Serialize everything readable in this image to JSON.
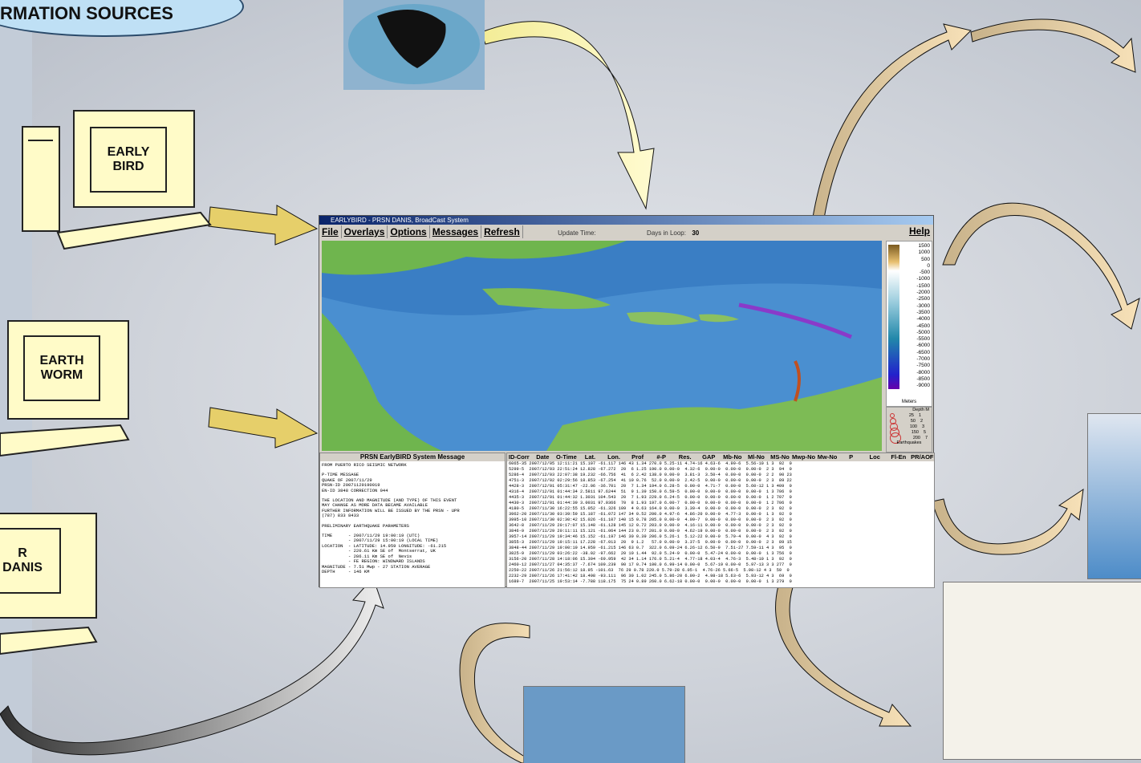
{
  "header": {
    "title": "RMATION SOURCES"
  },
  "sources": [
    {
      "lines": [
        "EARLY",
        "BIRD"
      ]
    },
    {
      "lines": [
        "EARTH",
        "WORM"
      ]
    },
    {
      "lines": [
        "R",
        "DANIS"
      ]
    }
  ],
  "window": {
    "title": "EARLYBIRD - PRSN DANIS, BroadCast System",
    "menu": [
      "File",
      "Overlays",
      "Options",
      "Messages",
      "Refresh"
    ],
    "update_label": "Update Time:",
    "days_label": "Days in Loop:",
    "days_value": "30",
    "help": "Help",
    "depth_scale": [
      "1500",
      "1000",
      "500",
      "0",
      "-500",
      "-1000",
      "-1500",
      "-2000",
      "-2500",
      "-3000",
      "-3500",
      "-4000",
      "-4500",
      "-5000",
      "-5500",
      "-6000",
      "-6500",
      "-7000",
      "-7500",
      "-8000",
      "-8500",
      "-9000"
    ],
    "units": "Meters",
    "depth_title": "Depth M",
    "depth_legend": [
      [
        "25",
        "1"
      ],
      [
        "50",
        "2"
      ],
      [
        "100",
        "3"
      ],
      [
        "150",
        "5"
      ],
      [
        "200",
        "7"
      ]
    ],
    "legend_caption": "Earthquakes",
    "message_title": "PRSN EarlyBIRD System Message",
    "message_paragraphs": [
      [
        "FROM PUERTO RICO SEISMIC NETWORK"
      ],
      [
        "P-TIME MESSAGE",
        "QUAKE OF 2007/11/29",
        "PRSN-ID 20071129190019",
        "EN-ID 3848 CORRECTION 044"
      ],
      [
        "THE LOCATION AND MAGNITUDE (AND TYPE) OF THIS EVENT",
        "MAY CHANGE AS MORE DATA BECAME AVAILABLE",
        "FURTHER INFORMATION WILL BE ISSUED BY THE PRSN - UPR",
        "(787) 833 8433"
      ],
      [
        "PRELIMINARY EARTHQUAKE PARAMETERS"
      ],
      [
        "TIME      - 2007/11/29 19:00:19 (UTC)",
        "          - 2007/11/29 15:00:19 (LOCAL TIME)",
        "LOCATION  - LATITUDE: 14.959 LONGITUDE: -61.215",
        "          - 220.61 Km SE of  Montserrat, UK",
        "          - 286.11 Km SE of  Nevis",
        "          - FE REGION: WINDWARD ISLANDS",
        "MAGNITUDE - 7.51 Mwp - 27 STATION AVERAGE",
        "DEPTH     - 146 KM"
      ]
    ],
    "table_header": [
      "ID-Corr",
      "Date",
      "O-Time",
      "Lat.",
      "Lon.",
      "Prof",
      "#-P",
      "Res.",
      "GAP",
      "Mb-No",
      "Ml-No",
      "MS-No",
      "Mwp-No",
      "Mw-No",
      "P",
      "Loc",
      "Fl-En",
      "PR/AOF"
    ],
    "table_rows": [
      "6065-35 2007/12/05 12:11:21 15.107 -61.117 146 43 1.34 270.0 5.25-11 4.74-16 4.63-6  4.99-6  5.56-10 1 3  92  0",
      "5299-5  2007/12/03 22:51:24 12.828 -67.272  20  6 1.25 190.0 0.00-0  4.32-6  0.00-0  0.00-0  0.00-0  2 3  94  0",
      "5286-4  2007/12/03 22:07:38 19.232 -66.756  41  6 2.42 138.0 0.00-0  3.81-3  3.50-4  0.00-0  0.00-0  2 2  90 23",
      "4751-3  2007/12/02 02:29:56 18.853 -67.254  41 10 0.76  52.0 0.00-0  2.42-5  0.00-0  0.00-0  0.00-0  2 3  89 22",
      "4428-3  2007/12/01 05:31:47 -22.06 -36.701  20  7 1.34 194.0 6.28-5  0.00-0  4.71-7  0.00-0  5.60-12 1 3 409  0",
      "4316-4  2007/12/01 01:44:34 2.5811 97.6244  51  9 1.39 150.0 6.59-5  0.00-0  0.00-0  0.00-0  0.00-0  1 3 706  0",
      "4435-3  2007/12/01 01:44:32 1.3031 104.543  20  7 1.93 229.0 6.24-5  0.00-0  0.00-0  0.00-0  0.00-0  1 2 707  0",
      "4430-3  2007/12/01 01:44:39 3.0031 97.0366  70  8 1.93 197.0 6.00-7  0.00-0  0.00-0  0.00-0  0.00-0  1 2 706  0",
      "4180-5  2007/11/30 16:22:55 15.052 -61.326 109  4 0.63 164.0 0.00-0  3.39-4  0.00-0  0.00-0  0.00-0  2 3  92  0",
      "3962-20 2007/11/30 03:39:59 15.187 -61.072 147 34 0.52 200.0 4.97-6  4.86-20 0.00-0  4.77-3  0.00-0  1 3  92  0",
      "3995-10 2007/11/30 02:30:42 15.026 -61.107 140 15 0.78 205.0 0.00-0  4.09-7  0.00-0  0.00-0  0.00-0  2 3  92  0",
      "3642-8  2007/11/29 20:17:07 15.148 -61.128 145 12 0.72 203.0 0.00-0  4.16-11 0.00-0  0.00-0  0.00-0  2 3  92  0",
      "3846-9  2007/11/29 20:11:11 15.121 -61.064 144 23 0.77 201.0 0.00-0  4.62-19 0.00-0  0.00-0  0.00-0  2 3  92  0",
      "3957-14 2007/11/29 19:34:46 15.152 -61.197 146 30 0.39 206.0 5.26-1  5.12-22 0.00-0  5.79-4  0.00-0  4 3  92  0",
      "3855-3  2007/11/29 19:15:11 17.228 -67.013  20  9 1.2   57.0 0.00-0  3.37-5  0.00-0  0.00-0  0.00-0  2 3  89 15",
      "3848-44 2007/11/29 19:00:19 14.959 -61.215 146 63 0.7  322.0 6.09-24 6.26-12 6.50-9  7.51-27 7.59-11 4 3  95  0",
      "3825-9  2007/11/29 03:26:22 -38.02 -97.662  20 10 1.44  92.0 5.24-9  0.00-0  5.47-24 0.00-0  0.00-0  1 3 756  0",
      "3156-20 2007/11/28 14:18:06 15.304 -69.959  42 34 1.14 176.0 5.21-4  4.77-18 4.03-4  4.76-3  5.48-10 1 3  92  0",
      "2460-12 2007/11/27 04:35:37 -7.674 109.239  90 17 0.74 100.0 6.99-14 0.00-0  5.67-19 0.00-0  5.97-13 3 3 277  0",
      "2250-22 2007/11/26 21:56:12 18.95 -101.63  76 29 0.78 220.0 5.79-28 6.05-1  4.76-26 5.66-5  5.98-12 4 3  59  0",
      "2232-29 2007/11/26 17:41:42 18.498 -93.111  96 30 1.02 245.0 5.86-20 6.09-2  4.98-18 5.63-6  5.93-12 4 3  69  0",
      "1689-7  2007/11/25 19:53:14 -7.788 118.175  75 24 0.89 260.0 6.62-18 0.00-0  0.00-0  0.00-0  0.00-0  1 3 279  0"
    ]
  }
}
